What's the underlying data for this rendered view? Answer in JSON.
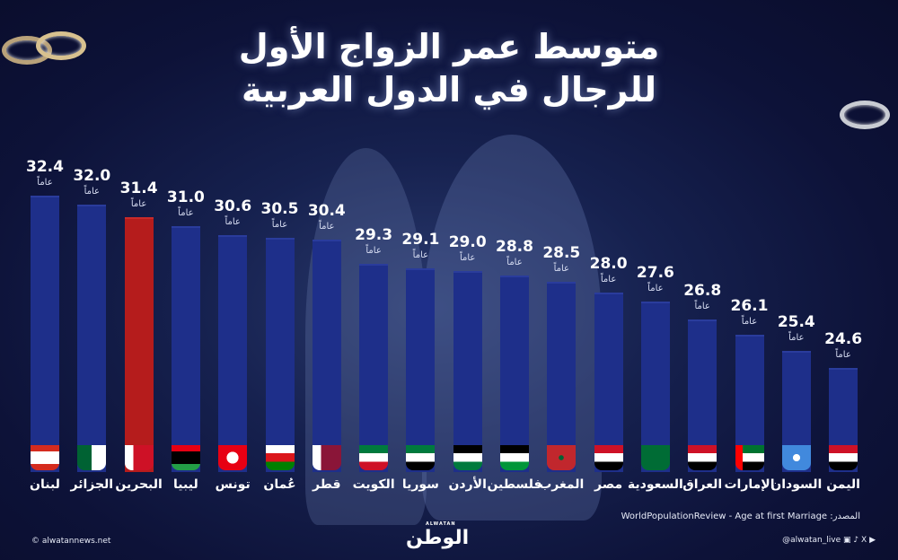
{
  "header": {
    "title_line1": "متوسط عمر الزواج الأول",
    "title_line2": "للرجال في الدول العربية"
  },
  "unit_label": "عاماً",
  "chart_data": {
    "type": "bar",
    "title": "متوسط عمر الزواج الأول للرجال في الدول العربية",
    "xlabel": "",
    "ylabel": "",
    "unit": "عاماً",
    "highlight": "البحرين",
    "highlight_color": "#b51c1c",
    "bar_color": "#1e2f8a",
    "categories": [
      "لبنان",
      "الجزائر",
      "البحرين",
      "ليبيا",
      "تونس",
      "عُمان",
      "قطر",
      "الكويت",
      "سوريا",
      "الأردن",
      "فلسطين",
      "المغرب",
      "مصر",
      "السعودية",
      "العراق",
      "الإمارات",
      "السودان",
      "اليمن"
    ],
    "values": [
      32.4,
      32.0,
      31.4,
      31.0,
      30.6,
      30.5,
      30.4,
      29.3,
      29.1,
      29.0,
      28.8,
      28.5,
      28.0,
      27.6,
      26.8,
      26.1,
      25.4,
      24.6
    ],
    "value_labels": [
      "32.4",
      "32.0",
      "31.4",
      "31.0",
      "30.6",
      "30.5",
      "30.4",
      "29.3",
      "29.1",
      "29.0",
      "28.8",
      "28.5",
      "28.0",
      "27.6",
      "26.8",
      "26.1",
      "25.4",
      "24.6"
    ]
  },
  "footer": {
    "source": "المصدر: WorldPopulationReview - Age at first Marriage",
    "website": "© alwatannews.net",
    "logo": "الوطن",
    "logo_small": "ALWATAN",
    "handle": "@alwatan_live"
  }
}
